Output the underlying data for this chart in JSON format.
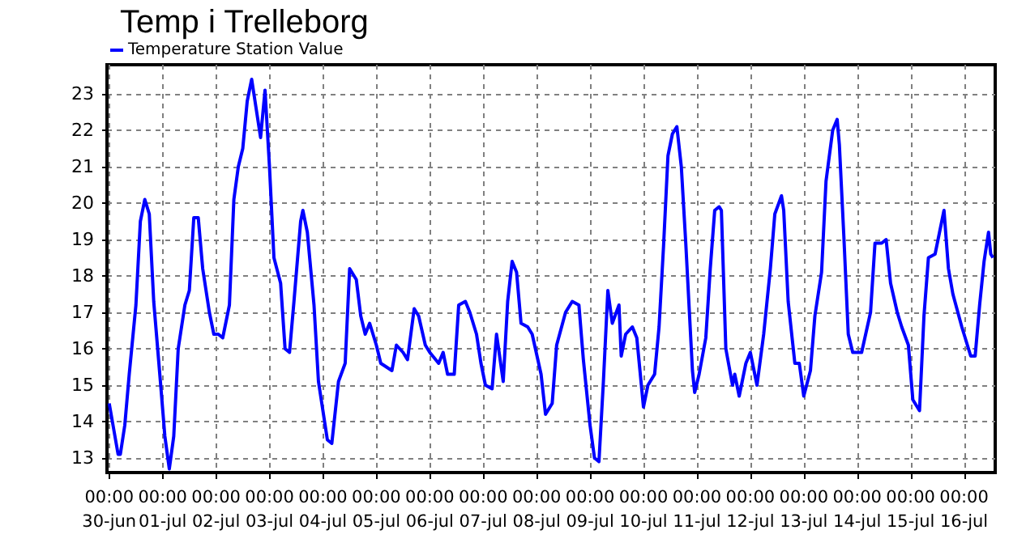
{
  "chart_data": {
    "type": "line",
    "title": "Temp i Trelleborg",
    "legend": "top left",
    "grid": true,
    "marker": "none",
    "line_style": "solid",
    "xlim": [
      "--06-29T23:00",
      "--07-16T14:00"
    ],
    "xticks": [
      {
        "value": "--06-30T00:00",
        "label": "00:00\n30-jun"
      },
      {
        "value": "--07-01T00:00",
        "label": "00:00\n01-jul"
      },
      {
        "value": "--07-02T00:00",
        "label": "00:00\n02-jul"
      },
      {
        "value": "--07-03T00:00",
        "label": "00:00\n03-jul"
      },
      {
        "value": "--07-04T00:00",
        "label": "00:00\n04-jul"
      },
      {
        "value": "--07-05T00:00",
        "label": "00:00\n05-jul"
      },
      {
        "value": "--07-06T00:00",
        "label": "00:00\n06-jul"
      },
      {
        "value": "--07-07T00:00",
        "label": "00:00\n07-jul"
      },
      {
        "value": "--07-08T00:00",
        "label": "00:00\n08-jul"
      },
      {
        "value": "--07-09T00:00",
        "label": "00:00\n09-jul"
      },
      {
        "value": "--07-10T00:00",
        "label": "00:00\n10-jul"
      },
      {
        "value": "--07-11T00:00",
        "label": "00:00\n11-jul"
      },
      {
        "value": "--07-12T00:00",
        "label": "00:00\n12-jul"
      },
      {
        "value": "--07-13T00:00",
        "label": "00:00\n13-jul"
      },
      {
        "value": "--07-14T00:00",
        "label": "00:00\n14-jul"
      },
      {
        "value": "--07-15T00:00",
        "label": "00:00\n15-jul"
      },
      {
        "value": "--07-16T00:00",
        "label": "00:00\n16-jul"
      }
    ],
    "ylim": [
      12.6,
      23.8
    ],
    "yticks": [
      13,
      14,
      15,
      16,
      17,
      18,
      19,
      20,
      21,
      22,
      23
    ],
    "x": [
      "--06-30T00:00",
      "--06-30T02:00",
      "--06-30T04:00",
      "--06-30T05:00",
      "--06-30T07:00",
      "--06-30T09:00",
      "--06-30T12:00",
      "--06-30T14:00",
      "--06-30T16:00",
      "--06-30T18:00",
      "--06-30T20:00",
      "--06-30T23:00",
      "--07-01T01:00",
      "--07-01T03:00",
      "--07-01T05:00",
      "--07-01T07:00",
      "--07-01T10:00",
      "--07-01T12:00",
      "--07-01T14:00",
      "--07-01T16:00",
      "--07-01T18:00",
      "--07-01T21:00",
      "--07-01T23:00",
      "--07-02T01:00",
      "--07-02T03:00",
      "--07-02T06:00",
      "--07-02T08:00",
      "--07-02T10:00",
      "--07-02T12:00",
      "--07-02T14:00",
      "--07-02T16:00",
      "--07-02T18:00",
      "--07-02T20:00",
      "--07-02T22:00",
      "--07-03T00:00",
      "--07-03T02:00",
      "--07-03T05:00",
      "--07-03T07:00",
      "--07-03T09:00",
      "--07-03T11:00",
      "--07-03T14:00",
      "--07-03T15:00",
      "--07-03T17:00",
      "--07-03T20:00",
      "--07-03T22:00",
      "--07-04T02:00",
      "--07-04T04:00",
      "--07-04T07:00",
      "--07-04T10:00",
      "--07-04T12:00",
      "--07-04T15:00",
      "--07-04T17:00",
      "--07-04T19:00",
      "--07-04T21:00",
      "--07-05T00:00",
      "--07-05T02:00",
      "--07-05T07:00",
      "--07-05T09:00",
      "--07-05T12:00",
      "--07-05T14:00",
      "--07-05T17:00",
      "--07-05T19:00",
      "--07-05T22:00",
      "--07-06T00:00",
      "--07-06T04:00",
      "--07-06T06:00",
      "--07-06T08:00",
      "--07-06T11:00",
      "--07-06T13:00",
      "--07-06T16:00",
      "--07-06T18:00",
      "--07-06T21:00",
      "--07-06T23:00",
      "--07-07T01:00",
      "--07-07T04:00",
      "--07-07T06:00",
      "--07-07T09:00",
      "--07-07T11:00",
      "--07-07T13:00",
      "--07-07T15:00",
      "--07-07T17:00",
      "--07-07T20:00",
      "--07-07T22:00",
      "--07-08T02:00",
      "--07-08T04:00",
      "--07-08T07:00",
      "--07-08T09:00",
      "--07-08T13:00",
      "--07-08T16:00",
      "--07-08T19:00",
      "--07-08T21:00",
      "--07-09T00:00",
      "--07-09T02:00",
      "--07-09T04:00",
      "--07-09T06:00",
      "--07-09T08:00",
      "--07-09T10:00",
      "--07-09T13:00",
      "--07-09T14:00",
      "--07-09T16:00",
      "--07-09T19:00",
      "--07-09T21:00",
      "--07-10T00:00",
      "--07-10T02:00",
      "--07-10T05:00",
      "--07-10T07:00",
      "--07-10T09:00",
      "--07-10T11:00",
      "--07-10T13:00",
      "--07-10T15:00",
      "--07-10T17:00",
      "--07-10T19:00",
      "--07-10T22:00",
      "--07-10T23:00",
      "--07-11T01:00",
      "--07-11T04:00",
      "--07-11T06:00",
      "--07-11T08:00",
      "--07-11T10:00",
      "--07-11T11:00",
      "--07-11T13:00",
      "--07-11T16:00",
      "--07-11T17:00",
      "--07-11T19:00",
      "--07-11T22:00",
      "--07-12T00:00",
      "--07-12T03:00",
      "--07-12T06:00",
      "--07-12T09:00",
      "--07-12T11:00",
      "--07-12T14:00",
      "--07-12T15:00",
      "--07-12T17:00",
      "--07-12T20:00",
      "--07-12T22:00",
      "--07-13T00:00",
      "--07-13T03:00",
      "--07-13T05:00",
      "--07-13T08:00",
      "--07-13T10:00",
      "--07-13T13:00",
      "--07-13T15:00",
      "--07-13T16:00",
      "--07-13T18:00",
      "--07-13T20:00",
      "--07-13T22:00",
      "--07-14T02:00",
      "--07-14T06:00",
      "--07-14T08:00",
      "--07-14T11:00",
      "--07-14T13:00",
      "--07-14T15:00",
      "--07-14T18:00",
      "--07-14T20:00",
      "--07-14T23:00",
      "--07-15T01:00",
      "--07-15T04:00",
      "--07-15T06:00",
      "--07-15T08:00",
      "--07-15T11:00",
      "--07-15T13:00",
      "--07-15T15:00",
      "--07-15T17:00",
      "--07-15T19:00",
      "--07-15T23:00",
      "--07-16T03:00",
      "--07-16T05:00",
      "--07-16T07:00",
      "--07-16T09:00",
      "--07-16T11:00",
      "--07-16T12:00",
      "--07-16T13:00"
    ],
    "series": [
      {
        "name": "Temperature Station Value",
        "color": "#0000ff",
        "values": [
          14.5,
          13.8,
          13.1,
          13.1,
          13.9,
          15.3,
          17.2,
          19.5,
          20.1,
          19.7,
          17.3,
          15.1,
          13.6,
          12.7,
          13.6,
          16.0,
          17.2,
          17.6,
          19.6,
          19.6,
          18.2,
          17.0,
          16.4,
          16.4,
          16.3,
          17.2,
          20.1,
          21.0,
          21.5,
          22.8,
          23.4,
          22.6,
          21.8,
          23.1,
          21.0,
          18.5,
          17.8,
          16.0,
          15.9,
          17.3,
          19.5,
          19.8,
          19.2,
          17.2,
          15.1,
          13.5,
          13.4,
          15.1,
          15.6,
          18.2,
          17.9,
          16.9,
          16.4,
          16.7,
          16.1,
          15.6,
          15.4,
          16.1,
          15.9,
          15.7,
          17.1,
          16.9,
          16.1,
          15.9,
          15.6,
          15.9,
          15.3,
          15.3,
          17.2,
          17.3,
          17.0,
          16.4,
          15.6,
          15.0,
          14.9,
          16.4,
          15.1,
          17.3,
          18.4,
          18.1,
          16.7,
          16.6,
          16.4,
          15.3,
          14.2,
          14.5,
          16.1,
          17.0,
          17.3,
          17.2,
          15.7,
          13.9,
          13.0,
          12.9,
          15.1,
          17.6,
          16.7,
          17.2,
          15.8,
          16.4,
          16.6,
          16.3,
          14.4,
          15.0,
          15.3,
          16.6,
          18.8,
          21.3,
          21.9,
          22.1,
          21.0,
          18.9,
          15.4,
          14.8,
          15.3,
          16.3,
          18.2,
          19.8,
          19.9,
          19.8,
          16.0,
          15.0,
          15.3,
          14.7,
          15.6,
          15.9,
          15.0,
          16.4,
          18.2,
          19.7,
          20.2,
          19.8,
          17.3,
          15.6,
          15.6,
          14.7,
          15.4,
          16.9,
          18.1,
          20.6,
          22.0,
          22.3,
          21.6,
          19.1,
          16.4,
          15.9,
          15.9,
          17.0,
          18.9,
          18.9,
          19.0,
          17.8,
          17.0,
          16.6,
          16.1,
          14.6,
          14.3,
          16.9,
          18.5,
          18.6,
          19.2,
          19.8,
          18.2,
          17.5,
          16.6,
          15.8,
          15.8,
          17.2,
          18.4,
          19.2,
          18.6,
          18.5
        ]
      }
    ]
  }
}
